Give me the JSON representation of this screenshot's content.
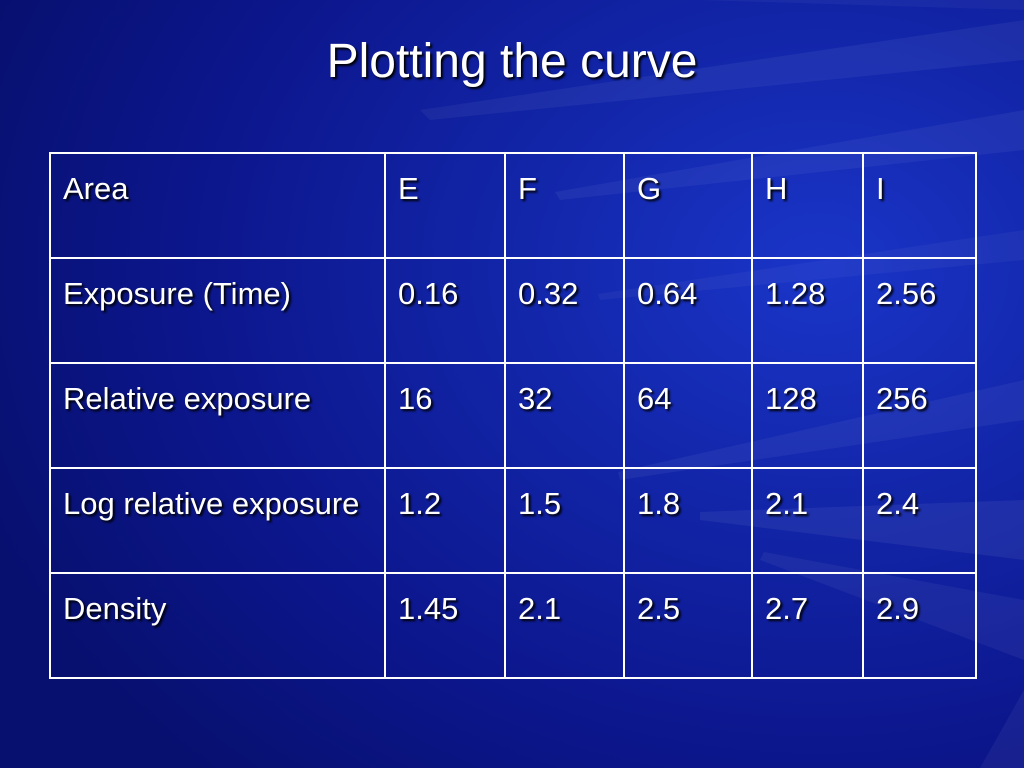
{
  "slide": {
    "title": "Plotting the curve"
  },
  "table": {
    "rows": [
      {
        "label": "Area",
        "cells": [
          "E",
          "F",
          "G",
          "H",
          "I"
        ]
      },
      {
        "label": "Exposure (Time)",
        "cells": [
          "0.16",
          "0.32",
          "0.64",
          "1.28",
          "2.56"
        ]
      },
      {
        "label": "Relative exposure",
        "cells": [
          "16",
          "32",
          "64",
          "128",
          "256"
        ]
      },
      {
        "label": "Log relative exposure",
        "cells": [
          "1.2",
          "1.5",
          "1.8",
          "2.1",
          "2.4"
        ]
      },
      {
        "label": "Density",
        "cells": [
          "1.45",
          "2.1",
          "2.5",
          "2.7",
          "2.9"
        ]
      }
    ]
  },
  "colors": {
    "background": "#0c168c",
    "text": "#ffffff",
    "grid": "#ffffff"
  }
}
